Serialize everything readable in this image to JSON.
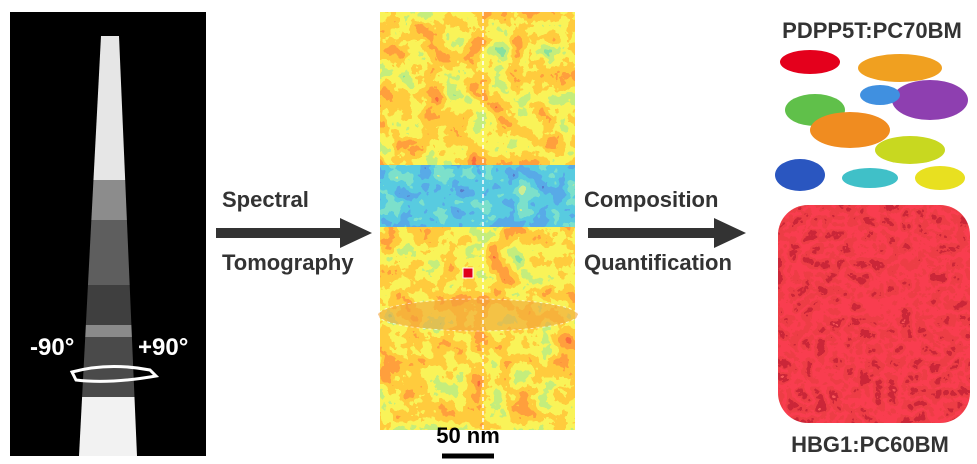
{
  "left_panel": {
    "angle_left": "-90°",
    "angle_right": "+90°"
  },
  "steps": [
    {
      "line1": "Spectral",
      "line2": "Tomography"
    },
    {
      "line1": "Composition",
      "line2": "Quantification"
    }
  ],
  "scale_bar": "50 nm",
  "right_panel": {
    "top_label": "PDPP5T:PC70BM",
    "bottom_label": "HBG1:PC60BM"
  }
}
